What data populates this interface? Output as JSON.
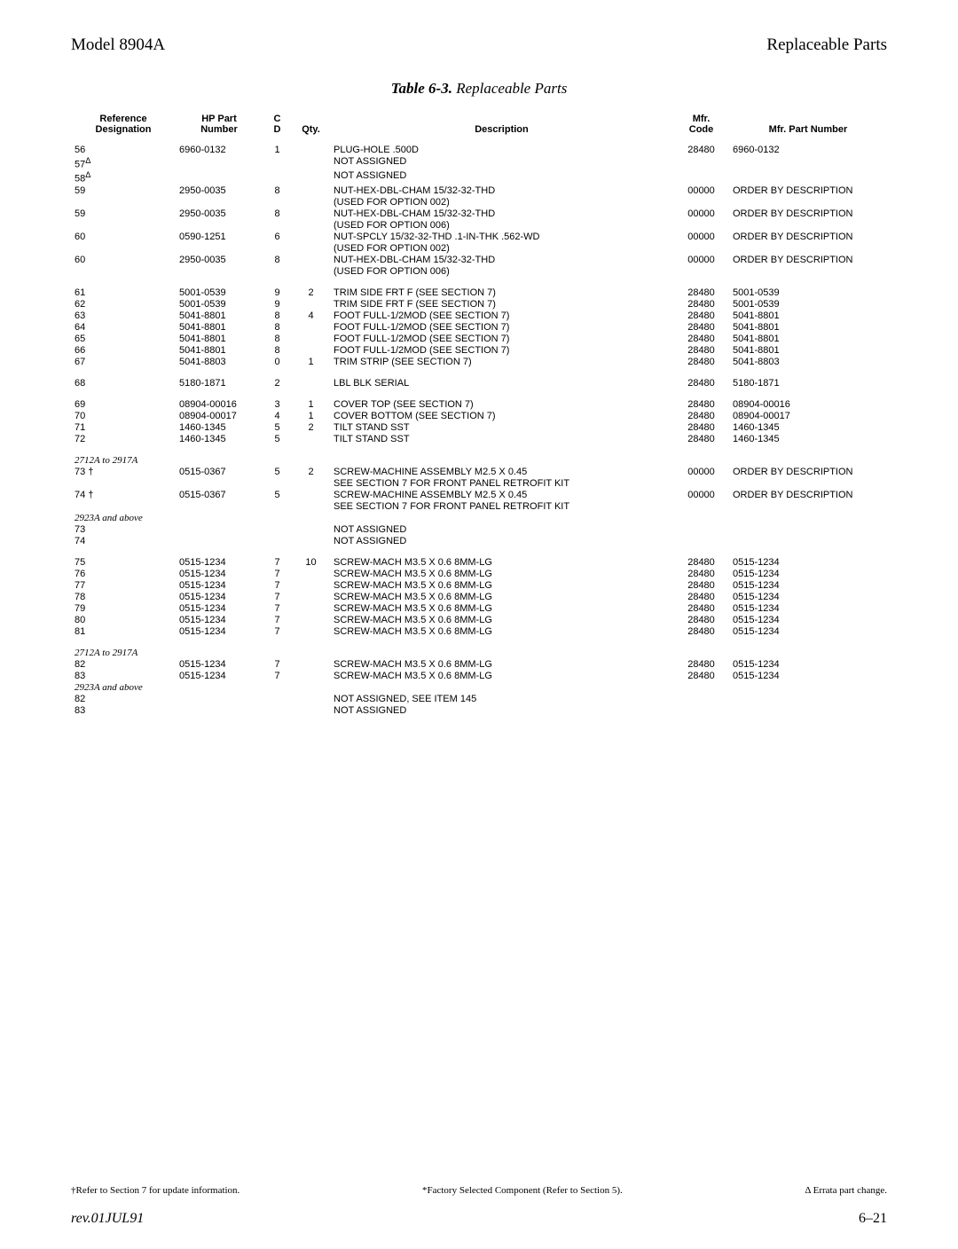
{
  "header": {
    "left": "Model 8904A",
    "right": "Replaceable Parts"
  },
  "tableTitle": {
    "label": "Table 6-3.",
    "suffix": " Replaceable Parts"
  },
  "columns": {
    "ref": "Reference\nDesignation",
    "hp": "HP Part\nNumber",
    "cd": "C\nD",
    "qty": "Qty.",
    "desc": "Description",
    "mfr": "Mfr.\nCode",
    "mpn": "Mfr. Part Number"
  },
  "rows": [
    {
      "ref": "56",
      "hp": "6960-0132",
      "cd": "1",
      "qty": "",
      "desc": "PLUG-HOLE .500D",
      "mfr": "28480",
      "mpn": "6960-0132"
    },
    {
      "ref": "57",
      "sup": "Δ",
      "desc": "NOT ASSIGNED"
    },
    {
      "ref": "58",
      "sup": "Δ",
      "desc": "NOT ASSIGNED"
    },
    {
      "ref": "59",
      "hp": "2950-0035",
      "cd": "8",
      "desc": "NUT-HEX-DBL-CHAM 15/32-32-THD",
      "mfr": "00000",
      "mpn": "ORDER BY DESCRIPTION"
    },
    {
      "desc": "(USED FOR OPTION 002)"
    },
    {
      "ref": "59",
      "hp": "2950-0035",
      "cd": "8",
      "desc": "NUT-HEX-DBL-CHAM 15/32-32-THD",
      "mfr": "00000",
      "mpn": "ORDER BY DESCRIPTION"
    },
    {
      "desc": "(USED FOR OPTION 006)"
    },
    {
      "ref": "60",
      "hp": "0590-1251",
      "cd": "6",
      "desc": "NUT-SPCLY 15/32-32-THD .1-IN-THK .562-WD",
      "mfr": "00000",
      "mpn": "ORDER BY DESCRIPTION"
    },
    {
      "desc": "(USED FOR OPTION 002)"
    },
    {
      "ref": "60",
      "hp": "2950-0035",
      "cd": "8",
      "desc": "NUT-HEX-DBL-CHAM 15/32-32-THD",
      "mfr": "00000",
      "mpn": "ORDER BY DESCRIPTION"
    },
    {
      "desc": "(USED FOR OPTION 006)"
    },
    {
      "spacer": true
    },
    {
      "ref": "61",
      "hp": "5001-0539",
      "cd": "9",
      "qty": "2",
      "desc": "TRIM SIDE FRT F (SEE SECTION 7)",
      "mfr": "28480",
      "mpn": "5001-0539"
    },
    {
      "ref": "62",
      "hp": "5001-0539",
      "cd": "9",
      "desc": "TRIM SIDE FRT F (SEE SECTION 7)",
      "mfr": "28480",
      "mpn": "5001-0539"
    },
    {
      "ref": "63",
      "hp": "5041-8801",
      "cd": "8",
      "qty": "4",
      "desc": "FOOT FULL-1/2MOD (SEE SECTION 7)",
      "mfr": "28480",
      "mpn": "5041-8801"
    },
    {
      "ref": "64",
      "hp": "5041-8801",
      "cd": "8",
      "desc": "FOOT FULL-1/2MOD (SEE SECTION 7)",
      "mfr": "28480",
      "mpn": "5041-8801"
    },
    {
      "ref": "65",
      "hp": "5041-8801",
      "cd": "8",
      "desc": "FOOT FULL-1/2MOD (SEE SECTION 7)",
      "mfr": "28480",
      "mpn": "5041-8801"
    },
    {
      "ref": "66",
      "hp": "5041-8801",
      "cd": "8",
      "desc": "FOOT FULL-1/2MOD (SEE SECTION 7)",
      "mfr": "28480",
      "mpn": "5041-8801"
    },
    {
      "ref": "67",
      "hp": "5041-8803",
      "cd": "0",
      "qty": "1",
      "desc": "TRIM STRIP (SEE SECTION 7)",
      "mfr": "28480",
      "mpn": "5041-8803"
    },
    {
      "spacer": true
    },
    {
      "ref": "68",
      "hp": "5180-1871",
      "cd": "2",
      "desc": "LBL BLK SERIAL",
      "mfr": "28480",
      "mpn": "5180-1871"
    },
    {
      "spacer": true
    },
    {
      "ref": "69",
      "hp": "08904-00016",
      "cd": "3",
      "qty": "1",
      "desc": "COVER TOP (SEE SECTION 7)",
      "mfr": "28480",
      "mpn": "08904-00016"
    },
    {
      "ref": "70",
      "hp": "08904-00017",
      "cd": "4",
      "qty": "1",
      "desc": "COVER BOTTOM (SEE SECTION 7)",
      "mfr": "28480",
      "mpn": "08904-00017"
    },
    {
      "ref": "71",
      "hp": "1460-1345",
      "cd": "5",
      "qty": "2",
      "desc": "TILT STAND SST",
      "mfr": "28480",
      "mpn": "1460-1345"
    },
    {
      "ref": "72",
      "hp": "1460-1345",
      "cd": "5",
      "desc": "TILT STAND SST",
      "mfr": "28480",
      "mpn": "1460-1345"
    },
    {
      "spacer": true
    },
    {
      "ref": "2712A to 2917A",
      "italic": true
    },
    {
      "ref": "73 †",
      "hp": "0515-0367",
      "cd": "5",
      "qty": "2",
      "desc": "SCREW-MACHINE ASSEMBLY M2.5 X 0.45",
      "mfr": "00000",
      "mpn": "ORDER BY DESCRIPTION"
    },
    {
      "desc": "SEE SECTION 7 FOR FRONT PANEL RETROFIT KIT"
    },
    {
      "ref": "74 †",
      "hp": "0515-0367",
      "cd": "5",
      "desc": "SCREW-MACHINE ASSEMBLY M2.5 X 0.45",
      "mfr": "00000",
      "mpn": "ORDER BY DESCRIPTION"
    },
    {
      "desc": "SEE SECTION 7 FOR FRONT PANEL RETROFIT KIT"
    },
    {
      "ref": "2923A and above",
      "italic": true
    },
    {
      "ref": "73",
      "desc": "NOT ASSIGNED"
    },
    {
      "ref": "74",
      "desc": "NOT ASSIGNED"
    },
    {
      "spacer": true
    },
    {
      "ref": "75",
      "hp": "0515-1234",
      "cd": "7",
      "qty": "10",
      "desc": "SCREW-MACH M3.5 X 0.6 8MM-LG",
      "mfr": "28480",
      "mpn": "0515-1234"
    },
    {
      "ref": "76",
      "hp": "0515-1234",
      "cd": "7",
      "desc": "SCREW-MACH M3.5 X 0.6 8MM-LG",
      "mfr": "28480",
      "mpn": "0515-1234"
    },
    {
      "ref": "77",
      "hp": "0515-1234",
      "cd": "7",
      "desc": "SCREW-MACH M3.5 X 0.6 8MM-LG",
      "mfr": "28480",
      "mpn": "0515-1234"
    },
    {
      "ref": "78",
      "hp": "0515-1234",
      "cd": "7",
      "desc": "SCREW-MACH M3.5 X 0.6 8MM-LG",
      "mfr": "28480",
      "mpn": "0515-1234"
    },
    {
      "ref": "79",
      "hp": "0515-1234",
      "cd": "7",
      "desc": "SCREW-MACH M3.5 X 0.6 8MM-LG",
      "mfr": "28480",
      "mpn": "0515-1234"
    },
    {
      "ref": "80",
      "hp": "0515-1234",
      "cd": "7",
      "desc": "SCREW-MACH M3.5 X 0.6 8MM-LG",
      "mfr": "28480",
      "mpn": "0515-1234"
    },
    {
      "ref": "81",
      "hp": "0515-1234",
      "cd": "7",
      "desc": "SCREW-MACH M3.5 X 0.6 8MM-LG",
      "mfr": "28480",
      "mpn": "0515-1234"
    },
    {
      "spacer": true
    },
    {
      "ref": "2712A to 2917A",
      "italic": true
    },
    {
      "ref": "82",
      "hp": "0515-1234",
      "cd": "7",
      "desc": "SCREW-MACH M3.5 X 0.6 8MM-LG",
      "mfr": "28480",
      "mpn": "0515-1234"
    },
    {
      "ref": "83",
      "hp": "0515-1234",
      "cd": "7",
      "desc": "SCREW-MACH M3.5 X 0.6 8MM-LG",
      "mfr": "28480",
      "mpn": "0515-1234"
    },
    {
      "ref": "2923A and above",
      "italic": true
    },
    {
      "ref": "82",
      "desc": "NOT ASSIGNED, SEE ITEM 145"
    },
    {
      "ref": "83",
      "desc": "NOT ASSIGNED"
    }
  ],
  "footnotes": {
    "left": "†Refer to Section 7 for update information.",
    "center": "*Factory Selected Component (Refer to Section 5).",
    "right": "Δ Errata part change."
  },
  "footer": {
    "rev": "rev.01JUL91",
    "page": "6–21"
  }
}
